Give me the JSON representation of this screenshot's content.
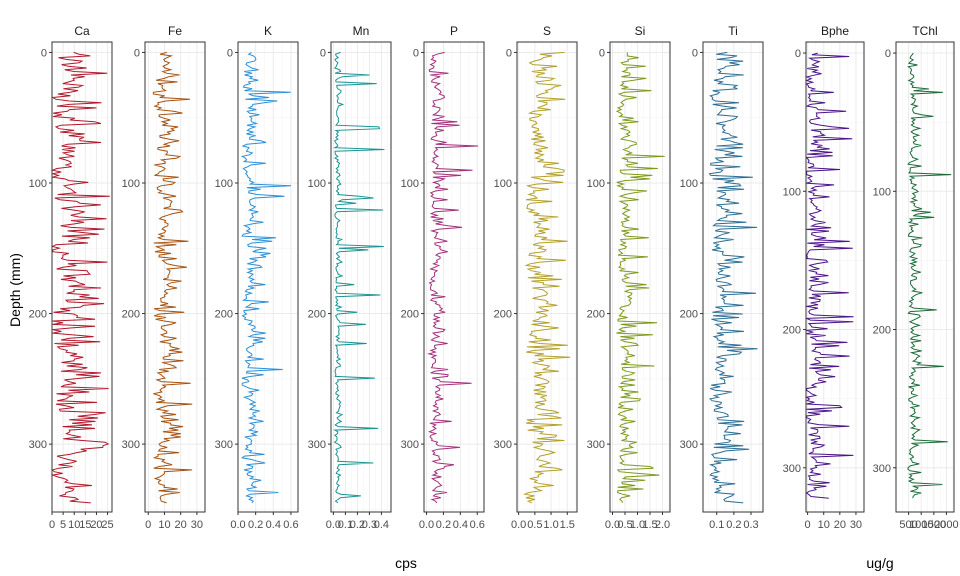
{
  "chart_data": {
    "type": "line",
    "orientation": "depth-profile",
    "y_axis_title": "Depth (mm)",
    "grid": true,
    "groups": [
      {
        "x_axis_title": "cps",
        "panels": [
          {
            "name": "Ca",
            "color": "#b2182b",
            "xlim": [
              0,
              27
            ],
            "xticks": [
              0,
              5,
              10,
              15,
              20,
              25
            ],
            "xtick_labels": [
              "0",
              "5",
              "10",
              "15",
              "20",
              "25"
            ],
            "ylim": [
              -8,
              352
            ],
            "yticks": [
              0,
              100,
              200,
              300
            ],
            "depth_range": [
              0,
              345
            ],
            "base": 7,
            "amp": 12,
            "spike_max": 26
          },
          {
            "name": "Fe",
            "color": "#a6510f",
            "xlim": [
              -2,
              35
            ],
            "xticks": [
              0,
              10,
              20,
              30
            ],
            "xtick_labels": [
              "0",
              "10",
              "20",
              "30"
            ],
            "ylim": [
              -8,
              352
            ],
            "yticks": [
              0,
              100,
              200,
              300
            ],
            "depth_range": [
              0,
              345
            ],
            "base": 9,
            "amp": 8,
            "spike_max": 28
          },
          {
            "name": "K",
            "color": "#2b8fd6",
            "xlim": [
              0,
              0.68
            ],
            "xticks": [
              0.0,
              0.2,
              0.4,
              0.6
            ],
            "xtick_labels": [
              "0.0",
              "0.2",
              "0.4",
              "0.6"
            ],
            "ylim": [
              -8,
              352
            ],
            "yticks": [
              0,
              100,
              200,
              300
            ],
            "depth_range": [
              0,
              345
            ],
            "base": 0.13,
            "amp": 0.12,
            "spike_max": 0.62
          },
          {
            "name": "Mn",
            "color": "#1a9393",
            "xlim": [
              -0.02,
              0.48
            ],
            "xticks": [
              0.0,
              0.1,
              0.2,
              0.3,
              0.4
            ],
            "xtick_labels": [
              "0.0",
              "0.1",
              "0.2",
              "0.3",
              "0.4"
            ],
            "ylim": [
              -8,
              352
            ],
            "yticks": [
              0,
              100,
              200,
              300
            ],
            "depth_range": [
              0,
              345
            ],
            "base": 0.03,
            "amp": 0.03,
            "spike_max": 0.43
          },
          {
            "name": "P",
            "color": "#a3307a",
            "xlim": [
              -0.03,
              0.68
            ],
            "xticks": [
              0.0,
              0.2,
              0.4,
              0.6
            ],
            "xtick_labels": [
              "0.0",
              "0.2",
              "0.4",
              "0.6"
            ],
            "ylim": [
              -8,
              352
            ],
            "yticks": [
              0,
              100,
              200,
              300
            ],
            "depth_range": [
              0,
              345
            ],
            "base": 0.1,
            "amp": 0.1,
            "spike_max": 0.62
          },
          {
            "name": "S",
            "color": "#b3a02a",
            "xlim": [
              -0.05,
              1.8
            ],
            "xticks": [
              0.0,
              0.5,
              1.0,
              1.5
            ],
            "xtick_labels": [
              "0.0",
              "0.5",
              "1.0",
              "1.5"
            ],
            "ylim": [
              -8,
              352
            ],
            "yticks": [
              0,
              100,
              200,
              300
            ],
            "depth_range": [
              0,
              345
            ],
            "base": 0.6,
            "amp": 0.55,
            "spike_max": 1.6
          },
          {
            "name": "Si",
            "color": "#7d9a1c",
            "xlim": [
              -0.1,
              2.3
            ],
            "xticks": [
              0.0,
              0.5,
              1.0,
              1.5,
              2.0
            ],
            "xtick_labels": [
              "0.0",
              "0.5",
              "1.0",
              "1.5",
              "2.0"
            ],
            "ylim": [
              -8,
              352
            ],
            "yticks": [
              0,
              100,
              200,
              300
            ],
            "depth_range": [
              0,
              345
            ],
            "base": 0.45,
            "amp": 0.4,
            "spike_max": 2.1
          },
          {
            "name": "Ti",
            "color": "#2c6e94",
            "xlim": [
              0.02,
              0.37
            ],
            "xticks": [
              0.1,
              0.2,
              0.3
            ],
            "xtick_labels": [
              "0.1",
              "0.2",
              "0.3"
            ],
            "ylim": [
              -8,
              352
            ],
            "yticks": [
              0,
              100,
              200,
              300
            ],
            "depth_range": [
              0,
              345
            ],
            "base": 0.12,
            "amp": 0.09,
            "spike_max": 0.34
          }
        ]
      },
      {
        "x_axis_title": "ug/g",
        "panels": [
          {
            "name": "Bphe",
            "color": "#4b148c",
            "xlim": [
              -1,
              35
            ],
            "xticks": [
              0,
              10,
              20,
              30
            ],
            "xtick_labels": [
              "0",
              "10",
              "20",
              "30"
            ],
            "ylim": [
              -8,
              332
            ],
            "yticks": [
              0,
              100,
              200,
              300
            ],
            "depth_range": [
              0,
              322
            ],
            "base": 3,
            "amp": 8,
            "spike_max": 29
          },
          {
            "name": "TChl",
            "color": "#1e6b3a",
            "xlim": [
              0,
              2300
            ],
            "xticks": [
              500,
              1000,
              1500,
              2000
            ],
            "xtick_labels": [
              "500",
              "1000",
              "1500",
              "2000"
            ],
            "ylim": [
              -8,
              332
            ],
            "yticks": [
              0,
              100,
              200,
              300
            ],
            "depth_range": [
              0,
              322
            ],
            "base": 650,
            "amp": 250,
            "spike_max": 2250
          }
        ]
      }
    ]
  }
}
